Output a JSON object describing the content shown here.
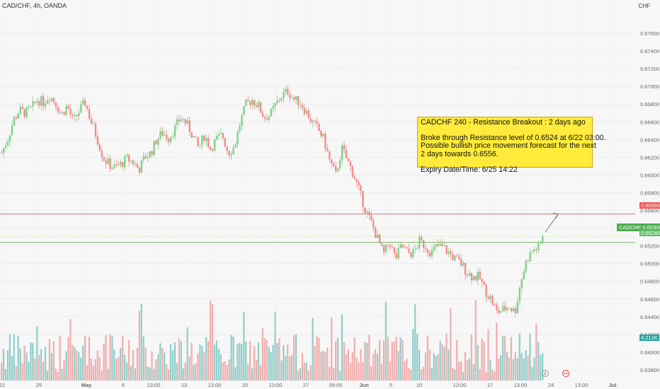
{
  "header": {
    "title": "CAD/CHF, 4h, OANDA",
    "currency": "CHF"
  },
  "annotation": {
    "line1": "CADCHF 240 - Resistance Breakout : 2 days ago",
    "line2": "Broke through Resistance level of 0.6524 at 6/22 03:00.",
    "line3": "Possible bullish price movement forecast for the next",
    "line4": "2 days towards 0.6556.",
    "line5": "Expiry Date/Time: 6/25 14:22"
  },
  "price_labels": {
    "symbol": "CADCHF",
    "current": "0.65306",
    "target": "0.65560",
    "resistance": "0.65240",
    "volume": "4.212K"
  },
  "colors": {
    "up": "#7fd28a",
    "down": "#f08c8c",
    "vol_up": "#7dc7c0",
    "vol_down": "#f0a0a0",
    "resistance_line": "#e57373",
    "support_line": "#7cb36a",
    "target_arrow": "#5a8f5e"
  },
  "chart_data": {
    "type": "candlestick",
    "symbol": "CAD/CHF",
    "interval": "4h",
    "source": "OANDA",
    "y_axis": {
      "range": [
        0.635,
        0.6795
      ],
      "ticks": [
        "0.67600",
        "0.67400",
        "0.67200",
        "0.67000",
        "0.66800",
        "0.66600",
        "0.66400",
        "0.66200",
        "0.66000",
        "0.65800",
        "0.65600",
        "0.65400",
        "0.65200",
        "0.65000",
        "0.64800",
        "0.64600",
        "0.64400",
        "0.64200",
        "0.64000",
        "0.63800"
      ]
    },
    "x_axis": {
      "ticks": [
        "22",
        "25",
        "May",
        "6",
        "13:00",
        "13",
        "13:00",
        "20",
        "13:00",
        "27",
        "09:00",
        "Jun",
        "5",
        "10",
        "13:00",
        "17",
        "13:00",
        "24",
        "13:00",
        "Jul"
      ]
    },
    "close_path": [
      [
        0,
        0.6625
      ],
      [
        5,
        0.664
      ],
      [
        10,
        0.6662
      ],
      [
        15,
        0.6673
      ],
      [
        20,
        0.667
      ],
      [
        25,
        0.6675
      ],
      [
        30,
        0.6685
      ],
      [
        35,
        0.6682
      ],
      [
        40,
        0.669
      ],
      [
        45,
        0.6682
      ],
      [
        50,
        0.6668
      ],
      [
        55,
        0.6678
      ],
      [
        60,
        0.666
      ],
      [
        65,
        0.6672
      ],
      [
        70,
        0.6682
      ],
      [
        75,
        0.666
      ],
      [
        80,
        0.6642
      ],
      [
        85,
        0.662
      ],
      [
        90,
        0.6612
      ],
      [
        95,
        0.6608
      ],
      [
        100,
        0.6612
      ],
      [
        105,
        0.6618
      ],
      [
        110,
        0.6615
      ],
      [
        115,
        0.6606
      ],
      [
        120,
        0.662
      ],
      [
        125,
        0.6625
      ],
      [
        130,
        0.664
      ],
      [
        135,
        0.6648
      ],
      [
        140,
        0.6642
      ],
      [
        145,
        0.6652
      ],
      [
        150,
        0.6665
      ],
      [
        155,
        0.6658
      ],
      [
        160,
        0.6645
      ],
      [
        165,
        0.663
      ],
      [
        170,
        0.6645
      ],
      [
        175,
        0.663
      ],
      [
        180,
        0.664
      ],
      [
        185,
        0.6645
      ],
      [
        190,
        0.6625
      ],
      [
        195,
        0.6632
      ],
      [
        200,
        0.666
      ],
      [
        205,
        0.668
      ],
      [
        210,
        0.6685
      ],
      [
        215,
        0.6678
      ],
      [
        220,
        0.6665
      ],
      [
        225,
        0.6668
      ],
      [
        230,
        0.668
      ],
      [
        235,
        0.669
      ],
      [
        240,
        0.6695
      ],
      [
        245,
        0.6685
      ],
      [
        250,
        0.6682
      ],
      [
        255,
        0.6672
      ],
      [
        260,
        0.666
      ],
      [
        265,
        0.6652
      ],
      [
        270,
        0.664
      ],
      [
        275,
        0.6615
      ],
      [
        280,
        0.66
      ],
      [
        285,
        0.663
      ],
      [
        290,
        0.6615
      ],
      [
        295,
        0.66
      ],
      [
        300,
        0.658
      ],
      [
        305,
        0.656
      ],
      [
        310,
        0.6545
      ],
      [
        315,
        0.6528
      ],
      [
        320,
        0.651
      ],
      [
        325,
        0.6525
      ],
      [
        330,
        0.6505
      ],
      [
        335,
        0.652
      ],
      [
        340,
        0.6512
      ],
      [
        345,
        0.6512
      ],
      [
        350,
        0.6525
      ],
      [
        355,
        0.652
      ],
      [
        360,
        0.6512
      ],
      [
        365,
        0.652
      ],
      [
        370,
        0.6518
      ],
      [
        375,
        0.6512
      ],
      [
        380,
        0.6505
      ],
      [
        385,
        0.65
      ],
      [
        390,
        0.649
      ],
      [
        395,
        0.6485
      ],
      [
        400,
        0.6485
      ],
      [
        405,
        0.647
      ],
      [
        410,
        0.646
      ],
      [
        415,
        0.6445
      ],
      [
        420,
        0.6448
      ],
      [
        425,
        0.6452
      ],
      [
        430,
        0.6445
      ],
      [
        435,
        0.648
      ],
      [
        440,
        0.6505
      ],
      [
        445,
        0.6515
      ],
      [
        450,
        0.6518
      ],
      [
        455,
        0.6531
      ]
    ],
    "target_price": 0.6556,
    "resistance_price": 0.6524,
    "current_price": 0.65306,
    "volume_last": "4.212K"
  }
}
